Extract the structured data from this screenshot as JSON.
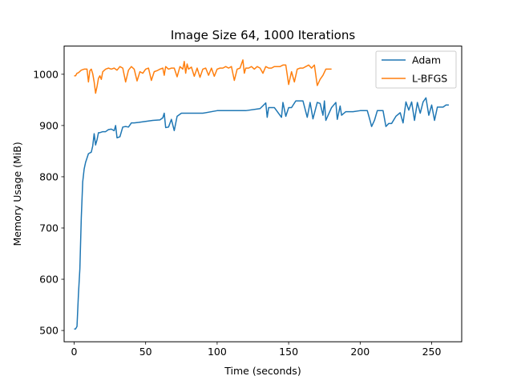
{
  "chart_data": {
    "type": "line",
    "title": "Image Size 64, 1000 Iterations",
    "xlabel": "Time (seconds)",
    "ylabel": "Memory Usage (MiB)",
    "xlim": [
      -7,
      271
    ],
    "ylim": [
      478,
      1055
    ],
    "xticks": [
      0,
      50,
      100,
      150,
      200,
      250
    ],
    "yticks": [
      500,
      600,
      700,
      800,
      900,
      1000
    ],
    "grid": false,
    "legend_position": "top-right",
    "series": [
      {
        "name": "Adam",
        "color": "#1f77b4",
        "x": [
          0,
          1,
          2,
          3,
          4,
          5,
          6,
          7,
          8,
          10,
          12,
          13,
          14,
          15,
          16,
          17,
          18,
          20,
          22,
          24,
          26,
          28,
          29,
          30,
          32,
          34,
          36,
          38,
          40,
          42,
          45,
          50,
          55,
          60,
          62,
          63,
          64,
          66,
          68,
          70,
          72,
          75,
          80,
          90,
          100,
          110,
          120,
          130,
          134,
          135,
          136,
          140,
          145,
          146,
          148,
          150,
          152,
          155,
          160,
          163,
          165,
          167,
          170,
          172,
          174,
          175,
          176,
          180,
          183,
          184,
          186,
          187,
          190,
          195,
          200,
          205,
          207,
          208,
          210,
          212,
          214,
          216,
          218,
          220,
          222,
          225,
          228,
          230,
          232,
          234,
          236,
          238,
          240,
          242,
          244,
          246,
          248,
          250,
          252,
          254,
          256,
          258,
          260,
          262
        ],
        "y": [
          503,
          503,
          508,
          570,
          620,
          720,
          790,
          815,
          828,
          845,
          848,
          860,
          884,
          862,
          872,
          886,
          886,
          888,
          888,
          892,
          893,
          890,
          900,
          876,
          878,
          897,
          898,
          897,
          905,
          905,
          906,
          908,
          910,
          911,
          915,
          924,
          896,
          897,
          912,
          890,
          918,
          924,
          924,
          924,
          929,
          929,
          929,
          933,
          944,
          916,
          935,
          935,
          916,
          945,
          918,
          935,
          935,
          948,
          948,
          916,
          945,
          913,
          945,
          943,
          920,
          948,
          910,
          935,
          945,
          912,
          938,
          920,
          927,
          927,
          929,
          929,
          909,
          898,
          910,
          929,
          929,
          929,
          898,
          904,
          904,
          918,
          925,
          905,
          946,
          930,
          946,
          910,
          945,
          924,
          946,
          954,
          920,
          940,
          910,
          936,
          936,
          936,
          940,
          940
        ]
      },
      {
        "name": "L-BFGS",
        "color": "#ff7f0e",
        "x": [
          0,
          1,
          2,
          3,
          5,
          7,
          9,
          10,
          11,
          12,
          13,
          14,
          15,
          16,
          17,
          18,
          19,
          20,
          22,
          24,
          26,
          28,
          30,
          32,
          34,
          36,
          38,
          40,
          42,
          44,
          46,
          48,
          50,
          52,
          54,
          56,
          58,
          60,
          62,
          63,
          64,
          66,
          68,
          70,
          72,
          74,
          76,
          77,
          78,
          79,
          80,
          82,
          84,
          86,
          88,
          90,
          92,
          94,
          96,
          98,
          100,
          102,
          104,
          106,
          108,
          110,
          112,
          114,
          116,
          118,
          119,
          120,
          122,
          124,
          126,
          128,
          130,
          132,
          134,
          136,
          138,
          140,
          142,
          144,
          146,
          148,
          150,
          152,
          154,
          156,
          158,
          160,
          162,
          164,
          166,
          168,
          170,
          172,
          174,
          176,
          178,
          180
        ],
        "y": [
          997,
          997,
          1002,
          1003,
          1008,
          1010,
          1010,
          985,
          1007,
          1010,
          1001,
          985,
          963,
          976,
          992,
          997,
          990,
          1005,
          1010,
          1012,
          1010,
          1012,
          1008,
          1015,
          1012,
          985,
          1008,
          1015,
          1010,
          987,
          1005,
          1002,
          1010,
          1012,
          988,
          1005,
          1007,
          1010,
          1012,
          998,
          1015,
          1010,
          1012,
          1012,
          995,
          1015,
          1010,
          1025,
          1002,
          1020,
          1010,
          1014,
          996,
          1012,
          994,
          1010,
          1012,
          998,
          1012,
          996,
          1010,
          1012,
          1012,
          1015,
          1012,
          1015,
          988,
          1010,
          1012,
          1028,
          1002,
          1012,
          1012,
          1015,
          1010,
          1015,
          1012,
          1002,
          1015,
          1012,
          1012,
          1015,
          1015,
          1015,
          1018,
          1018,
          980,
          1005,
          985,
          1010,
          1012,
          1012,
          1015,
          1018,
          1012,
          1018,
          978,
          990,
          998,
          1010,
          1010,
          1010
        ]
      }
    ]
  }
}
